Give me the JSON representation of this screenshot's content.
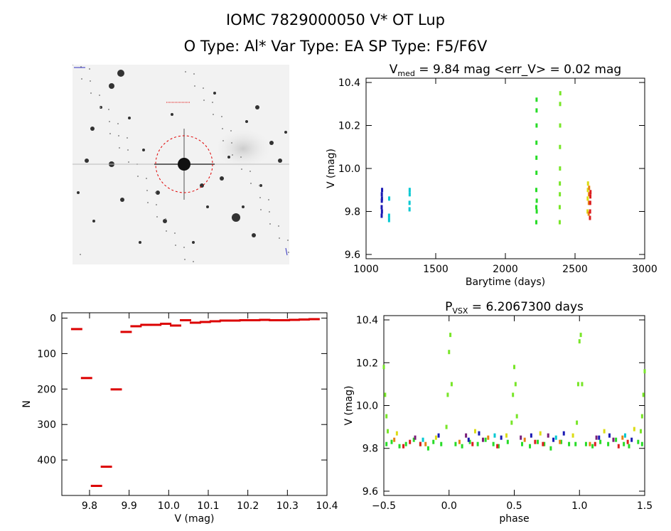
{
  "header": {
    "title_line1": "IOMC 7829000050    V* OT Lup",
    "title_line2": "O Type: Al*   Var Type: EA   SP Type: F5/F6V"
  },
  "finder_image": {
    "description": "DSS finder chart with dashed red circle around target",
    "circle_color": "#e00000"
  },
  "chart_data": [
    {
      "id": "lightcurve_time",
      "type": "scatter",
      "title_main": "V",
      "title_sub": "med",
      "title_rest": " = 9.84 mag <err_V> = 0.02 mag",
      "xlabel": "Barytime (days)",
      "ylabel": "V (mag)",
      "xlim": [
        1000,
        3000
      ],
      "ylim": [
        10.42,
        9.58
      ],
      "xticks": [
        "1000",
        "1500",
        "2000",
        "2500",
        "3000"
      ],
      "yticks": [
        "9.6",
        "9.8",
        "10.0",
        "10.2",
        "10.4"
      ],
      "series": [
        {
          "color": "#1a1ab4",
          "x": [
            1112,
            1112,
            1113,
            1113,
            1114,
            1114,
            1115
          ],
          "y": [
            9.78,
            9.82,
            9.85,
            9.88,
            9.8,
            9.86,
            9.9
          ]
        },
        {
          "color": "#00c8d2",
          "x": [
            1165,
            1165,
            1166,
            1312,
            1312,
            1313,
            1313
          ],
          "y": [
            9.76,
            9.78,
            9.86,
            9.81,
            9.84,
            9.88,
            9.9
          ]
        },
        {
          "color": "#28dc28",
          "x": [
            2222,
            2222,
            2222,
            2223,
            2223,
            2223,
            2224,
            2224,
            2224,
            2225,
            2225
          ],
          "y": [
            9.75,
            9.82,
            9.9,
            9.98,
            10.05,
            10.12,
            10.2,
            10.27,
            10.32,
            9.85,
            9.8
          ]
        },
        {
          "color": "#78e628",
          "x": [
            2390,
            2390,
            2391,
            2391,
            2392,
            2392,
            2393,
            2393,
            2394
          ],
          "y": [
            9.75,
            9.82,
            9.88,
            9.93,
            10.0,
            10.1,
            10.2,
            10.3,
            10.35
          ]
        },
        {
          "color": "#dcdc14",
          "x": [
            2590,
            2591,
            2592,
            2593
          ],
          "y": [
            9.8,
            9.86,
            9.9,
            9.93
          ]
        },
        {
          "color": "#e68214",
          "x": [
            2598,
            2599,
            2600,
            2601
          ],
          "y": [
            9.79,
            9.84,
            9.88,
            9.91
          ]
        },
        {
          "color": "#dc1e1e",
          "x": [
            2607,
            2608,
            2609,
            2610,
            2611
          ],
          "y": [
            9.77,
            9.8,
            9.84,
            9.87,
            9.89
          ]
        }
      ]
    },
    {
      "id": "histogram",
      "type": "bar",
      "title": "",
      "xlabel": "V (mag)",
      "ylabel": "N",
      "xlim": [
        9.73,
        10.4
      ],
      "ylim": [
        -15,
        500
      ],
      "xticks": [
        "9.8",
        "9.9",
        "10.0",
        "10.1",
        "10.2",
        "10.3",
        "10.4"
      ],
      "yticks": [
        "0",
        "100",
        "200",
        "300",
        "400"
      ],
      "bin_width": 0.025,
      "bin_starts": [
        9.755,
        9.78,
        9.805,
        9.83,
        9.855,
        9.88,
        9.905,
        9.93,
        9.955,
        9.98,
        10.005,
        10.03,
        10.055,
        10.08,
        10.105,
        10.13,
        10.155,
        10.18,
        10.205,
        10.23,
        10.255,
        10.28,
        10.305,
        10.33,
        10.355
      ],
      "values": [
        30,
        168,
        472,
        418,
        200,
        38,
        22,
        18,
        18,
        15,
        20,
        5,
        12,
        10,
        8,
        6,
        6,
        5,
        5,
        4,
        5,
        5,
        4,
        3,
        2
      ],
      "bar_color": "#dc0000"
    },
    {
      "id": "phased_lightcurve",
      "type": "scatter",
      "title_main": "P",
      "title_sub": "VSX",
      "title_rest": " = 6.2067300 days",
      "xlabel": "phase",
      "ylabel": "V (mag)",
      "xlim": [
        -0.5,
        1.5
      ],
      "ylim": [
        10.42,
        9.58
      ],
      "xticks": [
        "−0.5",
        "0.0",
        "0.5",
        "1.0",
        "1.5"
      ],
      "yticks": [
        "9.6",
        "9.8",
        "10.0",
        "10.2",
        "10.4"
      ],
      "eclipse_centers": [
        0.0,
        0.5,
        1.0
      ],
      "series": [
        {
          "color": "#28dc28",
          "x": [
            -0.48,
            -0.44,
            -0.38,
            -0.33,
            -0.27,
            -0.22,
            -0.16,
            -0.12,
            -0.06,
            0.05,
            0.1,
            0.16,
            0.22,
            0.28,
            0.34,
            0.38,
            0.45,
            0.56,
            0.62,
            0.68,
            0.73,
            0.78,
            0.86,
            0.92,
            0.97,
            1.05,
            1.1,
            1.16,
            1.22,
            1.28,
            1.34,
            1.38,
            1.45,
            1.48
          ],
          "y": [
            9.82,
            9.83,
            9.81,
            9.82,
            9.84,
            9.82,
            9.8,
            9.83,
            9.82,
            9.82,
            9.81,
            9.83,
            9.82,
            9.84,
            9.82,
            9.81,
            9.83,
            9.82,
            9.81,
            9.83,
            9.82,
            9.8,
            9.83,
            9.82,
            9.82,
            9.82,
            9.81,
            9.83,
            9.82,
            9.84,
            9.82,
            9.81,
            9.83,
            9.82
          ]
        },
        {
          "color": "#78e628",
          "x": [
            -0.5,
            -0.49,
            -0.48,
            -0.47,
            -0.02,
            -0.01,
            0.0,
            0.01,
            0.02,
            0.48,
            0.49,
            0.5,
            0.51,
            0.52,
            0.98,
            0.99,
            1.0,
            1.01,
            1.02,
            1.47,
            1.48,
            1.49,
            1.5
          ],
          "y": [
            10.18,
            10.05,
            9.95,
            9.88,
            9.9,
            10.05,
            10.25,
            10.33,
            10.1,
            9.92,
            10.05,
            10.18,
            10.1,
            9.95,
            9.92,
            10.1,
            10.3,
            10.33,
            10.1,
            9.88,
            9.95,
            10.05,
            10.16
          ]
        },
        {
          "color": "#1a1ab4",
          "x": [
            -0.08,
            0.15,
            0.23,
            0.4,
            0.63,
            0.8,
            0.88,
            1.15,
            1.23,
            1.4
          ],
          "y": [
            9.86,
            9.84,
            9.87,
            9.85,
            9.86,
            9.84,
            9.87,
            9.85,
            9.86,
            9.84
          ]
        },
        {
          "color": "#dc1e1e",
          "x": [
            -0.35,
            -0.3,
            -0.22,
            0.18,
            0.37,
            0.66,
            0.72,
            1.12,
            1.3,
            1.37
          ],
          "y": [
            9.81,
            9.83,
            9.82,
            9.82,
            9.81,
            9.83,
            9.82,
            9.82,
            9.81,
            9.83
          ]
        },
        {
          "color": "#e68214",
          "x": [
            -0.42,
            -0.18,
            0.08,
            0.3,
            0.58,
            0.85,
            1.08,
            1.33
          ],
          "y": [
            9.84,
            9.82,
            9.83,
            9.85,
            9.84,
            9.83,
            9.82,
            9.85
          ]
        },
        {
          "color": "#dcdc14",
          "x": [
            -0.4,
            -0.1,
            0.2,
            0.44,
            0.7,
            0.95,
            1.19,
            1.42
          ],
          "y": [
            9.87,
            9.85,
            9.88,
            9.86,
            9.87,
            9.86,
            9.88,
            9.89
          ]
        },
        {
          "color": "#7a1e78",
          "x": [
            -0.26,
            0.13,
            0.26,
            0.55,
            0.76,
            1.13,
            1.26
          ],
          "y": [
            9.85,
            9.86,
            9.84,
            9.85,
            9.86,
            9.85,
            9.84
          ]
        },
        {
          "color": "#00c8d2",
          "x": [
            -0.2,
            0.35,
            0.82,
            1.35
          ],
          "y": [
            9.84,
            9.86,
            9.85,
            9.86
          ]
        }
      ]
    }
  ]
}
